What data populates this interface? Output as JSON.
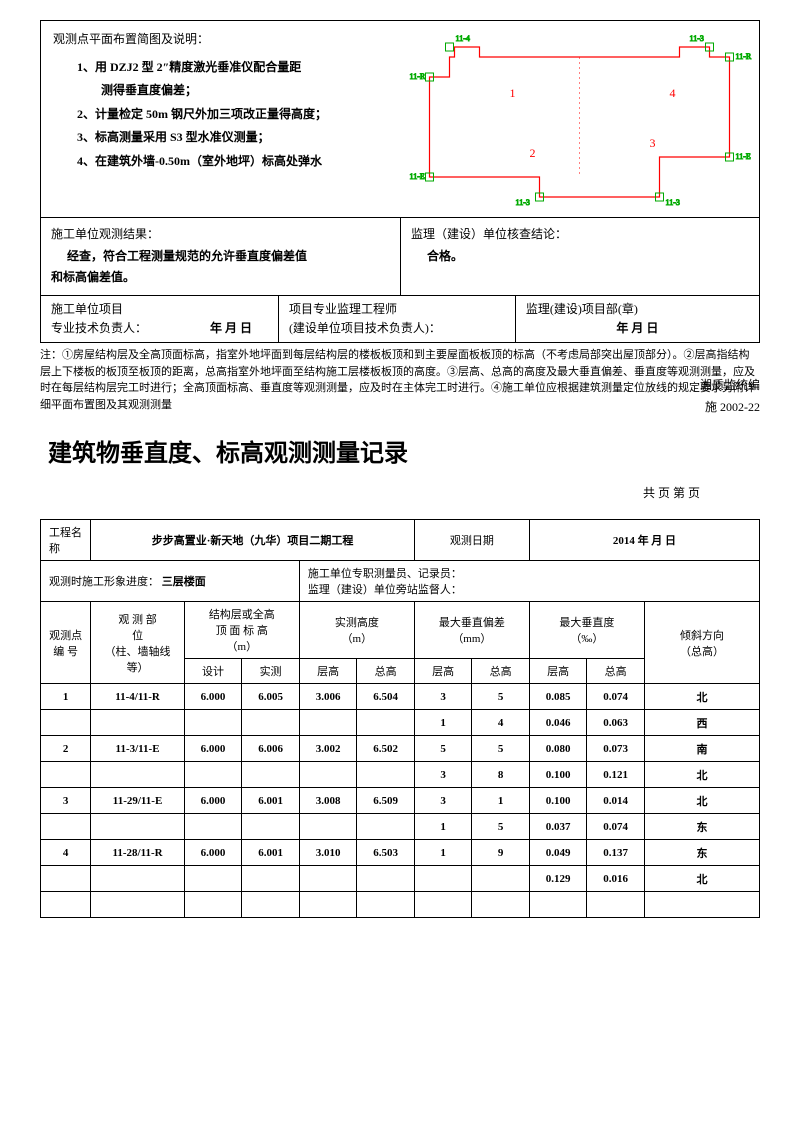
{
  "diagram_header": "观测点平面布置简图及说明：",
  "notes_list": [
    "1、用 DZJ2 型 2″精度激光垂准仪配合量距",
    "测得垂直度偏差；",
    "2、计量检定 50m 钢尺外加三项改正量得高度；",
    "",
    "3、标高测量采用 S3 型水准仪测量；",
    "4、在建筑外墙-0.50m（室外地坪）标高处弹水"
  ],
  "result_left_label": "施工单位观测结果：",
  "result_left_text1": "经查，符合工程测量规范的允许垂直度偏差值",
  "result_left_text2": "和标高偏差值。",
  "result_right_label": "监理（建设）单位核查结论：",
  "result_right_text": "合格。",
  "sig": {
    "c1a": "施工单位项目",
    "c1b": "专业技术负责人：",
    "c2a": "项目专业监理工程师",
    "c2b": "(建设单位项目技术负责人)：",
    "c3a": "监理(建设)项目部(章)",
    "date": "年    月    日"
  },
  "footnote": "注：①房屋结构层及全高顶面标高，指室外地坪面到每层结构层的楼板板顶和到主要屋面板板顶的标高（不考虑局部突出屋顶部分）。②层高指结构层上下楼板的板顶至板顶的距离，总高指室外地坪面至结构施工层楼板板顶的高度。③层高、总高的高度及最大垂直偏差、垂直度等观测测量，应及时在每层结构层完工时进行；全高顶面标高、垂直度等观测测量，应及时在主体完工时进行。④施工单位应根据建筑测量定位放线的规定要求另附详细平面布置图及其观测测量",
  "code_label1": "湘质监统编",
  "code_label2": "施 2002-22",
  "title": "建筑物垂直度、标高观测测量记录",
  "page_info": "共        页 第        页",
  "row_proj": {
    "label": "工程名称",
    "value": "步步高置业·新天地（九华）项目二期工程",
    "date_label": "观测日期",
    "date_value": "2014 年      月      日"
  },
  "row_progress": {
    "label": "观测时施工形象进度：",
    "value": "三层楼面",
    "right": "施工单位专职测量员、记录员：\n监理（建设）单位旁站监督人："
  },
  "headers": {
    "col1": "观测点\n编  号",
    "col2": "观 测 部\n位\n（柱、墙轴线\n等）",
    "col3": "结构层或全高\n顶 面 标 高\n（m）",
    "col3a": "设计",
    "col3b": "实测",
    "col4": "实测高度\n（m）",
    "col4a": "层高",
    "col4b": "总高",
    "col5": "最大垂直偏差\n（mm）",
    "col5a": "层高",
    "col5b": "总高",
    "col6": "最大垂直度\n（‰）",
    "col6a": "层高",
    "col6b": "总高",
    "col7": "倾斜方向\n（总高）"
  },
  "data": [
    [
      "1",
      "11-4/11-R",
      "6.000",
      "6.005",
      "3.006",
      "6.504",
      "3",
      "5",
      "0.085",
      "0.074",
      "北"
    ],
    [
      "",
      "",
      "",
      "",
      "",
      "",
      "1",
      "4",
      "0.046",
      "0.063",
      "西"
    ],
    [
      "2",
      "11-3/11-E",
      "6.000",
      "6.006",
      "3.002",
      "6.502",
      "5",
      "5",
      "0.080",
      "0.073",
      "南"
    ],
    [
      "",
      "",
      "",
      "",
      "",
      "",
      "3",
      "8",
      "0.100",
      "0.121",
      "北"
    ],
    [
      "3",
      "11-29/11-E",
      "6.000",
      "6.001",
      "3.008",
      "6.509",
      "3",
      "1",
      "0.100",
      "0.014",
      "北"
    ],
    [
      "",
      "",
      "",
      "",
      "",
      "",
      "1",
      "5",
      "0.037",
      "0.074",
      "东"
    ],
    [
      "4",
      "11-28/11-R",
      "6.000",
      "6.001",
      "3.010",
      "6.503",
      "1",
      "9",
      "0.049",
      "0.137",
      "东"
    ],
    [
      "",
      "",
      "",
      "",
      "",
      "",
      "",
      "",
      "0.129",
      "0.016",
      "北"
    ],
    [
      "",
      "",
      "",
      "",
      "",
      "",
      "",
      "",
      "",
      "",
      ""
    ]
  ],
  "diagram": {
    "outline_color": "#ff0000",
    "marker_color": "#00cc00",
    "label_color": "#ff0000",
    "labels": [
      "1",
      "2",
      "3",
      "4"
    ]
  }
}
